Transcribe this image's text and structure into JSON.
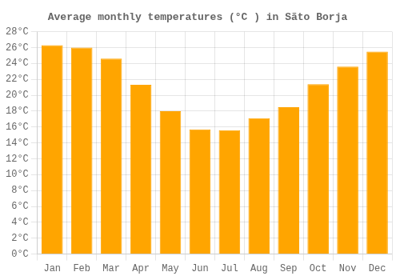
{
  "chart_data": {
    "type": "bar",
    "title": "Average monthly temperatures (°C ) in Sãto Borja",
    "categories": [
      "Jan",
      "Feb",
      "Mar",
      "Apr",
      "May",
      "Jun",
      "Jul",
      "Aug",
      "Sep",
      "Oct",
      "Nov",
      "Dec"
    ],
    "values": [
      26.3,
      26.0,
      24.6,
      21.3,
      18.0,
      15.7,
      15.6,
      17.1,
      18.5,
      21.4,
      23.6,
      25.5
    ],
    "color": "#FFA500",
    "ylim": [
      0,
      28
    ],
    "yticks": [
      {
        "value": 0,
        "label": "0°C"
      },
      {
        "value": 2,
        "label": "2°C"
      },
      {
        "value": 4,
        "label": "4°C"
      },
      {
        "value": 6,
        "label": "6°C"
      },
      {
        "value": 8,
        "label": "8°C"
      },
      {
        "value": 10,
        "label": "10°C"
      },
      {
        "value": 12,
        "label": "12°C"
      },
      {
        "value": 14,
        "label": "14°C"
      },
      {
        "value": 16,
        "label": "16°C"
      },
      {
        "value": 18,
        "label": "18°C"
      },
      {
        "value": 20,
        "label": "20°C"
      },
      {
        "value": 22,
        "label": "22°C"
      },
      {
        "value": 24,
        "label": "24°C"
      },
      {
        "value": 26,
        "label": "26°C"
      },
      {
        "value": 28,
        "label": "28°C"
      }
    ],
    "grid": true
  }
}
